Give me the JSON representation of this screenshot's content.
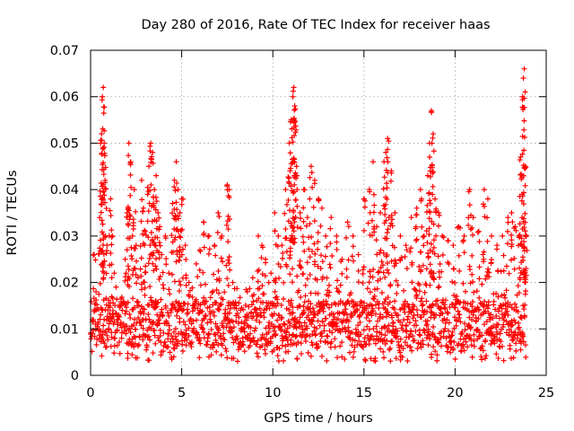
{
  "chart_data": {
    "type": "scatter",
    "title": "Day 280 of 2016, Rate Of TEC Index for receiver haas",
    "xlabel": "GPS time / hours",
    "ylabel": "ROTI / TECUs",
    "xlim": [
      0,
      25
    ],
    "ylim": [
      0,
      0.07
    ],
    "x_ticks": [
      0,
      5,
      10,
      15,
      20,
      25
    ],
    "x_tick_labels": [
      "0",
      "5",
      "10",
      "15",
      "20",
      "25"
    ],
    "y_ticks": [
      0,
      0.01,
      0.02,
      0.03,
      0.04,
      0.05,
      0.06,
      0.07
    ],
    "y_tick_labels": [
      "0",
      "0.01",
      "0.02",
      "0.03",
      "0.04",
      "0.05",
      "0.06",
      "0.07"
    ],
    "grid": true,
    "marker": "+",
    "color": "#ff0000",
    "series": [
      {
        "name": "ROTI",
        "points": [
          [
            0.1,
            0.012
          ],
          [
            0.2,
            0.026
          ],
          [
            0.3,
            0.018
          ],
          [
            0.4,
            0.011
          ],
          [
            0.5,
            0.034
          ],
          [
            0.6,
            0.052
          ],
          [
            0.65,
            0.06
          ],
          [
            0.7,
            0.062
          ],
          [
            0.75,
            0.05
          ],
          [
            0.8,
            0.042
          ],
          [
            0.9,
            0.028
          ],
          [
            1.0,
            0.015
          ],
          [
            1.1,
            0.038
          ],
          [
            1.2,
            0.03
          ],
          [
            1.3,
            0.022
          ],
          [
            1.4,
            0.019
          ],
          [
            1.5,
            0.012
          ],
          [
            1.7,
            0.008
          ],
          [
            1.9,
            0.025
          ],
          [
            2.0,
            0.035
          ],
          [
            2.1,
            0.05
          ],
          [
            2.2,
            0.046
          ],
          [
            2.3,
            0.03
          ],
          [
            2.4,
            0.04
          ],
          [
            2.5,
            0.028
          ],
          [
            2.6,
            0.021
          ],
          [
            2.8,
            0.042
          ],
          [
            2.9,
            0.036
          ],
          [
            3.0,
            0.031
          ],
          [
            3.2,
            0.045
          ],
          [
            3.3,
            0.05
          ],
          [
            3.4,
            0.048
          ],
          [
            3.5,
            0.04
          ],
          [
            3.6,
            0.043
          ],
          [
            3.7,
            0.035
          ],
          [
            3.8,
            0.032
          ],
          [
            3.9,
            0.026
          ],
          [
            4.1,
            0.03
          ],
          [
            4.3,
            0.022
          ],
          [
            4.5,
            0.037
          ],
          [
            4.6,
            0.042
          ],
          [
            4.7,
            0.046
          ],
          [
            4.8,
            0.04
          ],
          [
            4.9,
            0.035
          ],
          [
            5.0,
            0.038
          ],
          [
            5.2,
            0.028
          ],
          [
            5.4,
            0.02
          ],
          [
            5.6,
            0.015
          ],
          [
            5.8,
            0.024
          ],
          [
            6.0,
            0.027
          ],
          [
            6.2,
            0.033
          ],
          [
            6.5,
            0.03
          ],
          [
            6.8,
            0.028
          ],
          [
            7.0,
            0.035
          ],
          [
            7.2,
            0.03
          ],
          [
            7.5,
            0.041
          ],
          [
            7.6,
            0.04
          ],
          [
            7.8,
            0.02
          ],
          [
            8.0,
            0.015
          ],
          [
            8.3,
            0.01
          ],
          [
            8.6,
            0.018
          ],
          [
            8.9,
            0.021
          ],
          [
            9.2,
            0.03
          ],
          [
            9.4,
            0.028
          ],
          [
            9.6,
            0.025
          ],
          [
            9.9,
            0.022
          ],
          [
            10.1,
            0.035
          ],
          [
            10.3,
            0.03
          ],
          [
            10.5,
            0.028
          ],
          [
            10.7,
            0.04
          ],
          [
            10.9,
            0.05
          ],
          [
            11.0,
            0.055
          ],
          [
            11.1,
            0.06
          ],
          [
            11.15,
            0.062
          ],
          [
            11.2,
            0.058
          ],
          [
            11.3,
            0.045
          ],
          [
            11.5,
            0.035
          ],
          [
            11.7,
            0.04
          ],
          [
            11.9,
            0.034
          ],
          [
            12.1,
            0.045
          ],
          [
            12.3,
            0.042
          ],
          [
            12.5,
            0.038
          ],
          [
            12.7,
            0.036
          ],
          [
            12.9,
            0.03
          ],
          [
            13.2,
            0.034
          ],
          [
            13.5,
            0.03
          ],
          [
            13.8,
            0.025
          ],
          [
            14.1,
            0.033
          ],
          [
            14.4,
            0.03
          ],
          [
            14.7,
            0.026
          ],
          [
            15.0,
            0.038
          ],
          [
            15.3,
            0.04
          ],
          [
            15.5,
            0.046
          ],
          [
            15.7,
            0.032
          ],
          [
            15.9,
            0.035
          ],
          [
            16.1,
            0.046
          ],
          [
            16.2,
            0.048
          ],
          [
            16.3,
            0.051
          ],
          [
            16.5,
            0.044
          ],
          [
            16.7,
            0.035
          ],
          [
            17.0,
            0.03
          ],
          [
            17.3,
            0.028
          ],
          [
            17.6,
            0.034
          ],
          [
            17.9,
            0.036
          ],
          [
            18.1,
            0.04
          ],
          [
            18.3,
            0.03
          ],
          [
            18.5,
            0.043
          ],
          [
            18.6,
            0.05
          ],
          [
            18.7,
            0.057
          ],
          [
            18.8,
            0.052
          ],
          [
            18.9,
            0.038
          ],
          [
            19.1,
            0.035
          ],
          [
            19.3,
            0.03
          ],
          [
            19.6,
            0.029
          ],
          [
            19.9,
            0.028
          ],
          [
            20.2,
            0.032
          ],
          [
            20.5,
            0.03
          ],
          [
            20.8,
            0.04
          ],
          [
            21.0,
            0.034
          ],
          [
            21.3,
            0.031
          ],
          [
            21.6,
            0.04
          ],
          [
            21.8,
            0.038
          ],
          [
            22.0,
            0.03
          ],
          [
            22.3,
            0.028
          ],
          [
            22.6,
            0.03
          ],
          [
            22.9,
            0.034
          ],
          [
            23.1,
            0.035
          ],
          [
            23.3,
            0.032
          ],
          [
            23.5,
            0.03
          ],
          [
            23.6,
            0.047
          ],
          [
            23.7,
            0.06
          ],
          [
            23.75,
            0.064
          ],
          [
            23.8,
            0.066
          ],
          [
            23.85,
            0.045
          ],
          [
            23.9,
            0.03
          ]
        ]
      }
    ],
    "band": {
      "description": "dense background of points between roughly 0.003 and 0.02 TECU across the whole day",
      "hours": [
        0,
        23.9
      ],
      "low": 0.003,
      "high": 0.02,
      "typical": 0.011
    }
  }
}
